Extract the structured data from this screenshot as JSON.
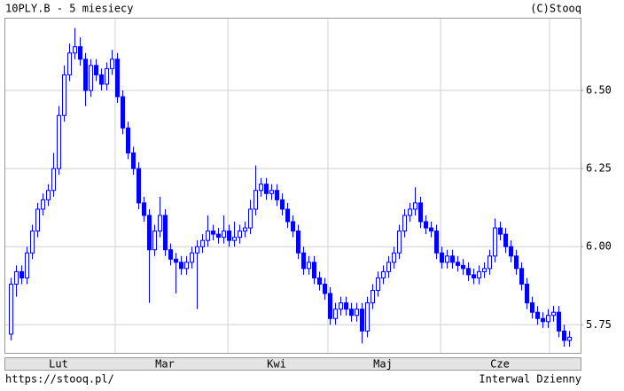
{
  "chart_data": {
    "type": "candlestick",
    "title": "10PLY.B - 5 miesiecy",
    "copyright": "(C)Stooq",
    "footer_left": "https://stooq.pl/",
    "footer_right": "Interwal Dzienny",
    "color": "#0000ff",
    "categories": [
      null,
      null,
      null,
      null,
      null,
      null,
      null,
      null,
      null,
      "Lut",
      null,
      null,
      null,
      null,
      null,
      null,
      null,
      null,
      null,
      null,
      null,
      null,
      null,
      null,
      null,
      null,
      null,
      null,
      null,
      "Mar",
      null,
      null,
      null,
      null,
      null,
      null,
      null,
      null,
      null,
      null,
      null,
      null,
      null,
      null,
      null,
      null,
      null,
      null,
      null,
      null,
      "Kwi",
      null,
      null,
      null,
      null,
      null,
      null,
      null,
      null,
      null,
      null,
      null,
      null,
      null,
      null,
      null,
      null,
      null,
      null,
      null,
      "Maj",
      null,
      null,
      null,
      null,
      null,
      null,
      null,
      null,
      null,
      null,
      null,
      null,
      null,
      null,
      null,
      null,
      null,
      null,
      null,
      null,
      null,
      "Cze",
      null,
      null,
      null,
      null,
      null,
      null,
      null,
      null,
      null,
      null,
      null,
      null,
      null
    ],
    "open": [
      5.72,
      5.88,
      5.92,
      5.9,
      5.98,
      6.05,
      6.12,
      6.15,
      6.18,
      6.25,
      6.42,
      6.55,
      6.62,
      6.64,
      6.6,
      6.5,
      6.58,
      6.55,
      6.52,
      6.57,
      6.6,
      6.48,
      6.38,
      6.3,
      6.25,
      6.14,
      6.1,
      5.99,
      6.05,
      6.1,
      5.99,
      5.96,
      5.95,
      5.93,
      5.95,
      5.98,
      6.0,
      6.02,
      6.05,
      6.04,
      6.03,
      6.05,
      6.02,
      6.03,
      6.05,
      6.06,
      6.12,
      6.18,
      6.2,
      6.17,
      6.18,
      6.15,
      6.12,
      6.08,
      6.05,
      5.98,
      5.93,
      5.95,
      5.9,
      5.88,
      5.85,
      5.77,
      5.8,
      5.82,
      5.8,
      5.78,
      5.8,
      5.73,
      5.82,
      5.86,
      5.9,
      5.92,
      5.95,
      5.98,
      6.05,
      6.1,
      6.12,
      6.14,
      6.08,
      6.06,
      6.05,
      5.98,
      5.95,
      5.97,
      5.95,
      5.94,
      5.93,
      5.91,
      5.9,
      5.92,
      5.93,
      5.97,
      6.06,
      6.04,
      6.0,
      5.97,
      5.93,
      5.88,
      5.82,
      5.79,
      5.77,
      5.76,
      5.78,
      5.79,
      5.73,
      5.7
    ],
    "high": [
      5.9,
      5.94,
      5.94,
      6.0,
      6.07,
      6.14,
      6.17,
      6.2,
      6.3,
      6.45,
      6.58,
      6.65,
      6.7,
      6.67,
      6.62,
      6.6,
      6.6,
      6.57,
      6.59,
      6.63,
      6.62,
      6.5,
      6.4,
      6.32,
      6.27,
      6.16,
      6.12,
      6.07,
      6.16,
      6.12,
      6.01,
      5.98,
      5.97,
      5.97,
      6.0,
      6.02,
      6.04,
      6.1,
      6.07,
      6.06,
      6.1,
      6.07,
      6.08,
      6.07,
      6.08,
      6.15,
      6.26,
      6.22,
      6.22,
      6.2,
      6.2,
      6.17,
      6.14,
      6.1,
      6.07,
      6.0,
      5.97,
      5.97,
      5.92,
      5.9,
      5.87,
      5.82,
      5.84,
      5.84,
      5.82,
      5.82,
      5.82,
      5.84,
      5.88,
      5.92,
      5.94,
      5.97,
      6.0,
      6.07,
      6.12,
      6.14,
      6.19,
      6.16,
      6.1,
      6.08,
      6.07,
      6.0,
      5.99,
      5.99,
      5.97,
      5.96,
      5.95,
      5.93,
      5.94,
      5.95,
      5.99,
      6.09,
      6.08,
      6.06,
      6.02,
      5.99,
      5.95,
      5.9,
      5.84,
      5.81,
      5.79,
      5.8,
      5.81,
      5.81,
      5.75,
      5.73
    ],
    "low": [
      5.7,
      5.84,
      5.88,
      5.88,
      5.96,
      6.03,
      6.1,
      6.13,
      6.16,
      6.23,
      6.4,
      6.53,
      6.6,
      6.58,
      6.45,
      6.48,
      6.53,
      6.5,
      6.5,
      6.55,
      6.46,
      6.36,
      6.28,
      6.23,
      6.12,
      6.08,
      5.82,
      5.97,
      6.03,
      5.97,
      5.94,
      5.85,
      5.91,
      5.91,
      5.93,
      5.8,
      5.98,
      6.0,
      6.02,
      6.01,
      6.01,
      6.0,
      6.0,
      6.01,
      6.03,
      6.04,
      6.1,
      6.16,
      6.15,
      6.15,
      6.13,
      6.1,
      6.06,
      6.03,
      5.96,
      5.91,
      5.91,
      5.88,
      5.86,
      5.83,
      5.75,
      5.75,
      5.78,
      5.78,
      5.76,
      5.76,
      5.69,
      5.71,
      5.8,
      5.84,
      5.88,
      5.9,
      5.93,
      5.96,
      6.03,
      6.08,
      6.1,
      6.06,
      6.04,
      6.03,
      5.96,
      5.93,
      5.93,
      5.93,
      5.92,
      5.91,
      5.89,
      5.88,
      5.88,
      5.9,
      5.91,
      5.95,
      6.02,
      5.98,
      5.95,
      5.91,
      5.86,
      5.8,
      5.77,
      5.75,
      5.74,
      5.74,
      5.76,
      5.71,
      5.68,
      5.68
    ],
    "close": [
      5.88,
      5.92,
      5.9,
      5.98,
      6.05,
      6.12,
      6.15,
      6.18,
      6.25,
      6.42,
      6.55,
      6.62,
      6.64,
      6.6,
      6.5,
      6.58,
      6.55,
      6.52,
      6.57,
      6.6,
      6.48,
      6.38,
      6.3,
      6.25,
      6.14,
      6.1,
      5.99,
      6.05,
      6.1,
      5.99,
      5.96,
      5.95,
      5.93,
      5.95,
      5.98,
      6.0,
      6.02,
      6.05,
      6.04,
      6.03,
      6.05,
      6.02,
      6.03,
      6.05,
      6.06,
      6.12,
      6.18,
      6.2,
      6.17,
      6.18,
      6.15,
      6.12,
      6.08,
      6.05,
      5.98,
      5.93,
      5.95,
      5.9,
      5.88,
      5.85,
      5.77,
      5.8,
      5.82,
      5.8,
      5.78,
      5.8,
      5.73,
      5.82,
      5.86,
      5.9,
      5.92,
      5.95,
      5.98,
      6.05,
      6.1,
      6.12,
      6.14,
      6.08,
      6.06,
      6.05,
      5.98,
      5.95,
      5.97,
      5.95,
      5.94,
      5.93,
      5.91,
      5.9,
      5.92,
      5.93,
      5.97,
      6.06,
      6.04,
      6.0,
      5.97,
      5.93,
      5.88,
      5.82,
      5.79,
      5.77,
      5.76,
      5.78,
      5.79,
      5.73,
      5.7,
      5.71
    ],
    "ylim": [
      5.66,
      6.73
    ],
    "yticks": [
      {
        "value": 5.75,
        "label": "5.75"
      },
      {
        "value": 6,
        "label": "6.00"
      },
      {
        "value": 6.25,
        "label": "6.25"
      },
      {
        "value": 6.5,
        "label": "6.50"
      }
    ],
    "grid": true
  }
}
